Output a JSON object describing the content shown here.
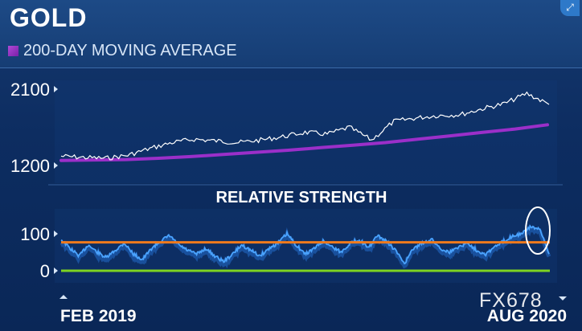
{
  "title": "GOLD",
  "legend_label": "200-DAY MOVING AVERAGE",
  "watermark": "FX678",
  "colors": {
    "price_line": "#ffffff",
    "moving_average": "#9b2fc9",
    "rsi_line": "#4aa3ff",
    "overbought": "#f07a1c",
    "oversold": "#7ed321",
    "highlight_circle": "#ffffff"
  },
  "icons": {
    "corner": "expand-icon"
  },
  "chart_data": [
    {
      "type": "line",
      "title": "GOLD",
      "x_range": [
        "FEB 2019",
        "AUG 2020"
      ],
      "ylim": [
        1200,
        2100
      ],
      "yticks": [
        "2100",
        "1200"
      ],
      "series": [
        {
          "name": "200-DAY MOVING AVERAGE",
          "values": [
            1260,
            1265,
            1270,
            1285,
            1305,
            1330,
            1355,
            1380,
            1410,
            1440,
            1470,
            1510,
            1550,
            1590,
            1630,
            1680
          ]
        },
        {
          "name": "",
          "values": [
            1310,
            1295,
            1285,
            1320,
            1400,
            1470,
            1510,
            1490,
            1470,
            1500,
            1540,
            1590,
            1570,
            1650,
            1500,
            1720,
            1760,
            1790,
            1800,
            1870,
            1930,
            2050,
            1920
          ]
        }
      ]
    },
    {
      "type": "line",
      "title": "RELATIVE STRENGTH",
      "x_range": [
        "FEB 2019",
        "AUG 2020"
      ],
      "xticks": [
        "FEB 2019",
        "AUG 2020"
      ],
      "ylim": [
        0,
        100
      ],
      "yticks": [
        "100",
        "0"
      ],
      "reference_lines": [
        90,
        0
      ],
      "highlight": "ellipse around final peak",
      "series": [
        {
          "name": "",
          "values": [
            85,
            60,
            40,
            70,
            50,
            35,
            55,
            75,
            45,
            30,
            60,
            80,
            95,
            70,
            55,
            45,
            60,
            40,
            25,
            45,
            70,
            55,
            40,
            60,
            75,
            100,
            70,
            45,
            60,
            80,
            65,
            50,
            75,
            85,
            60,
            95,
            80,
            55,
            20,
            60,
            75,
            85,
            60,
            50,
            65,
            75,
            55,
            45,
            65,
            80,
            95,
            100,
            120,
            110,
            45
          ]
        }
      ]
    }
  ]
}
